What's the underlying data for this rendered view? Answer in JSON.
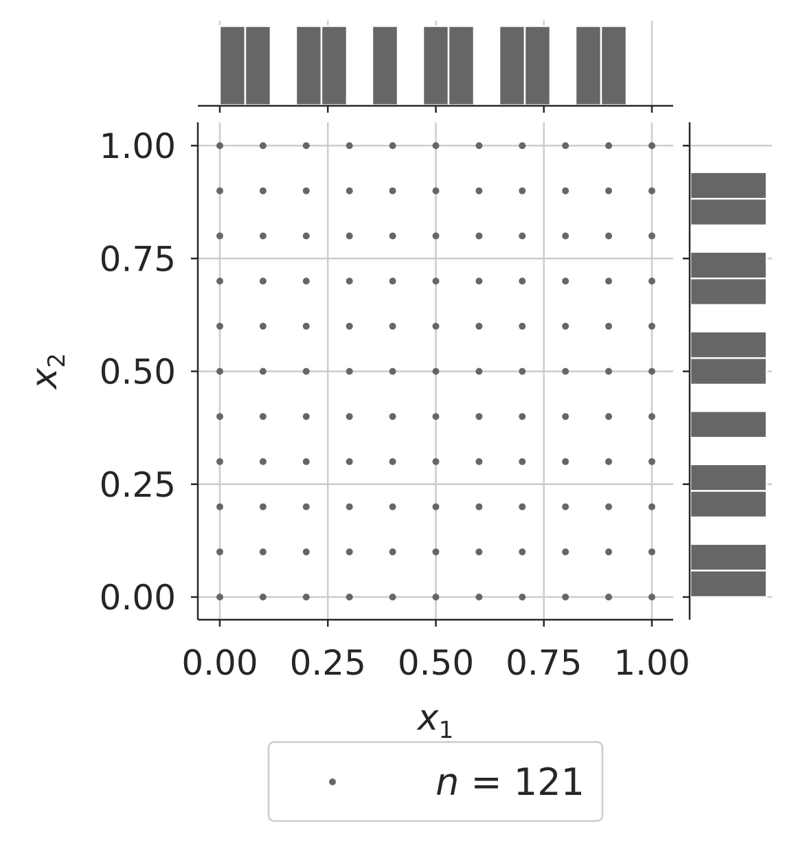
{
  "chart_data": {
    "type": "scatter",
    "xlabel": {
      "base": "x",
      "sub": "1"
    },
    "ylabel": {
      "base": "x",
      "sub": "2"
    },
    "xlim": [
      -0.05,
      1.05
    ],
    "ylim": [
      -0.05,
      1.05
    ],
    "xticks": [
      0,
      0.25,
      0.5,
      0.75,
      1
    ],
    "yticks": [
      0,
      0.25,
      0.5,
      0.75,
      1
    ],
    "xtick_labels": [
      "0.00",
      "0.25",
      "0.50",
      "0.75",
      "1.00"
    ],
    "ytick_labels": [
      "0.00",
      "0.25",
      "0.50",
      "0.75",
      "1.00"
    ],
    "grid": true,
    "grid_values": [
      0,
      0.1,
      0.2,
      0.3,
      0.4,
      0.5,
      0.6,
      0.7,
      0.8,
      0.9,
      1.0
    ],
    "marginal_histograms": {
      "bin_edges": [
        0,
        0.0588,
        0.1176,
        0.1765,
        0.2353,
        0.2941,
        0.3529,
        0.4118,
        0.4706,
        0.5294,
        0.5882,
        0.6471,
        0.7059,
        0.7647,
        0.8235,
        0.8824,
        0.9412,
        1.0
      ],
      "x_counts": [
        11,
        11,
        0,
        11,
        11,
        0,
        11,
        0,
        11,
        11,
        0,
        11,
        11,
        0,
        11,
        11,
        0
      ],
      "y_counts": [
        11,
        11,
        0,
        11,
        11,
        0,
        11,
        0,
        11,
        11,
        0,
        11,
        11,
        0,
        11,
        11,
        0
      ]
    },
    "legend": {
      "label_prefix": "n",
      "label_equals": " = ",
      "label_value": "121",
      "placement": "lower center, outside"
    },
    "colors": {
      "points": "#666666",
      "bars": "#666666",
      "grid": "#cccccc",
      "axis": "#262626"
    }
  }
}
